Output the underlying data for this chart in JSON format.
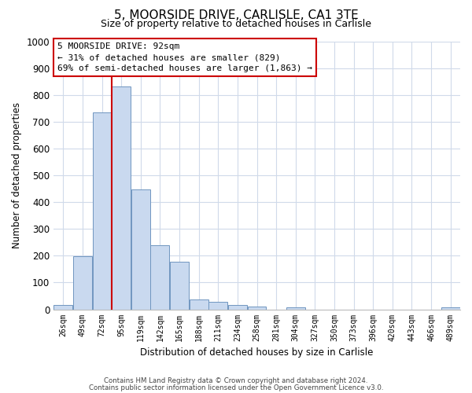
{
  "title": "5, MOORSIDE DRIVE, CARLISLE, CA1 3TE",
  "subtitle": "Size of property relative to detached houses in Carlisle",
  "xlabel": "Distribution of detached houses by size in Carlisle",
  "ylabel": "Number of detached properties",
  "bar_labels": [
    "26sqm",
    "49sqm",
    "72sqm",
    "95sqm",
    "119sqm",
    "142sqm",
    "165sqm",
    "188sqm",
    "211sqm",
    "234sqm",
    "258sqm",
    "281sqm",
    "304sqm",
    "327sqm",
    "350sqm",
    "373sqm",
    "396sqm",
    "420sqm",
    "443sqm",
    "466sqm",
    "489sqm"
  ],
  "bar_values": [
    15,
    197,
    735,
    830,
    448,
    240,
    178,
    37,
    28,
    15,
    10,
    0,
    7,
    0,
    0,
    0,
    0,
    0,
    0,
    0,
    8
  ],
  "bar_color": "#c9d9ef",
  "bar_edge_color": "#7096c0",
  "highlight_bar_idx": 3,
  "highlight_color": "#cc0000",
  "ylim": [
    0,
    1000
  ],
  "yticks": [
    0,
    100,
    200,
    300,
    400,
    500,
    600,
    700,
    800,
    900,
    1000
  ],
  "annotation_title": "5 MOORSIDE DRIVE: 92sqm",
  "annotation_line1": "← 31% of detached houses are smaller (829)",
  "annotation_line2": "69% of semi-detached houses are larger (1,863) →",
  "annotation_box_color": "#ffffff",
  "annotation_box_edge": "#cc0000",
  "footer1": "Contains HM Land Registry data © Crown copyright and database right 2024.",
  "footer2": "Contains public sector information licensed under the Open Government Licence v3.0.",
  "background_color": "#ffffff",
  "grid_color": "#d0daea"
}
